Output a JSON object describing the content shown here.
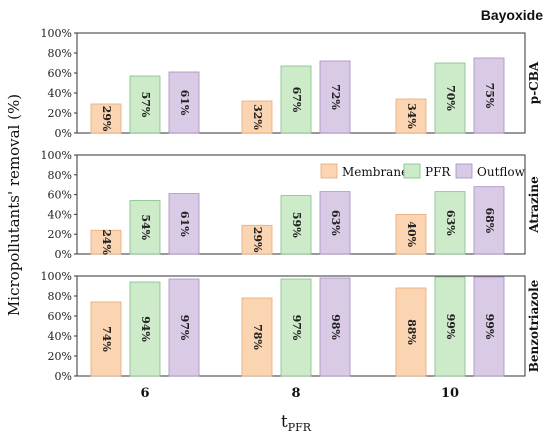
{
  "chart_data": {
    "type": "bar",
    "title": "Bayoxide",
    "ylabel": "Micropollutants' removal (%)",
    "xlabel_main": "t",
    "xlabel_sub": "PFR",
    "categories": [
      "6",
      "8",
      "10"
    ],
    "ylim": [
      0,
      100
    ],
    "yticks": [
      "0%",
      "20%",
      "40%",
      "60%",
      "80%",
      "100%"
    ],
    "legend_position": "top-right of middle panel",
    "series_meta": [
      {
        "name": "Membrane",
        "color": "#fbd5b2"
      },
      {
        "name": "PFR",
        "color": "#cdeac9"
      },
      {
        "name": "Outflow",
        "color": "#d9cbe6"
      }
    ],
    "panels": [
      {
        "name": "p-CBA",
        "series": [
          {
            "name": "Membrane",
            "values": [
              29,
              32,
              34
            ],
            "labels": [
              "29%",
              "32%",
              "34%"
            ]
          },
          {
            "name": "PFR",
            "values": [
              57,
              67,
              70
            ],
            "labels": [
              "57%",
              "67%",
              "70%"
            ]
          },
          {
            "name": "Outflow",
            "values": [
              61,
              72,
              75
            ],
            "labels": [
              "61%",
              "72%",
              "75%"
            ]
          }
        ]
      },
      {
        "name": "Atrazine",
        "series": [
          {
            "name": "Membrane",
            "values": [
              24,
              29,
              40
            ],
            "labels": [
              "24%",
              "29%",
              "40%"
            ]
          },
          {
            "name": "PFR",
            "values": [
              54,
              59,
              63
            ],
            "labels": [
              "54%",
              "59%",
              "63%"
            ]
          },
          {
            "name": "Outflow",
            "values": [
              61,
              63,
              68
            ],
            "labels": [
              "61%",
              "63%",
              "68%"
            ]
          }
        ]
      },
      {
        "name": "Benzotriazole",
        "series": [
          {
            "name": "Membrane",
            "values": [
              74,
              78,
              88
            ],
            "labels": [
              "74%",
              "78%",
              "88%"
            ]
          },
          {
            "name": "PFR",
            "values": [
              94,
              97,
              99
            ],
            "labels": [
              "94%",
              "97%",
              "99%"
            ]
          },
          {
            "name": "Outflow",
            "values": [
              97,
              98,
              99
            ],
            "labels": [
              "97%",
              "98%",
              "99%"
            ]
          }
        ]
      }
    ]
  }
}
